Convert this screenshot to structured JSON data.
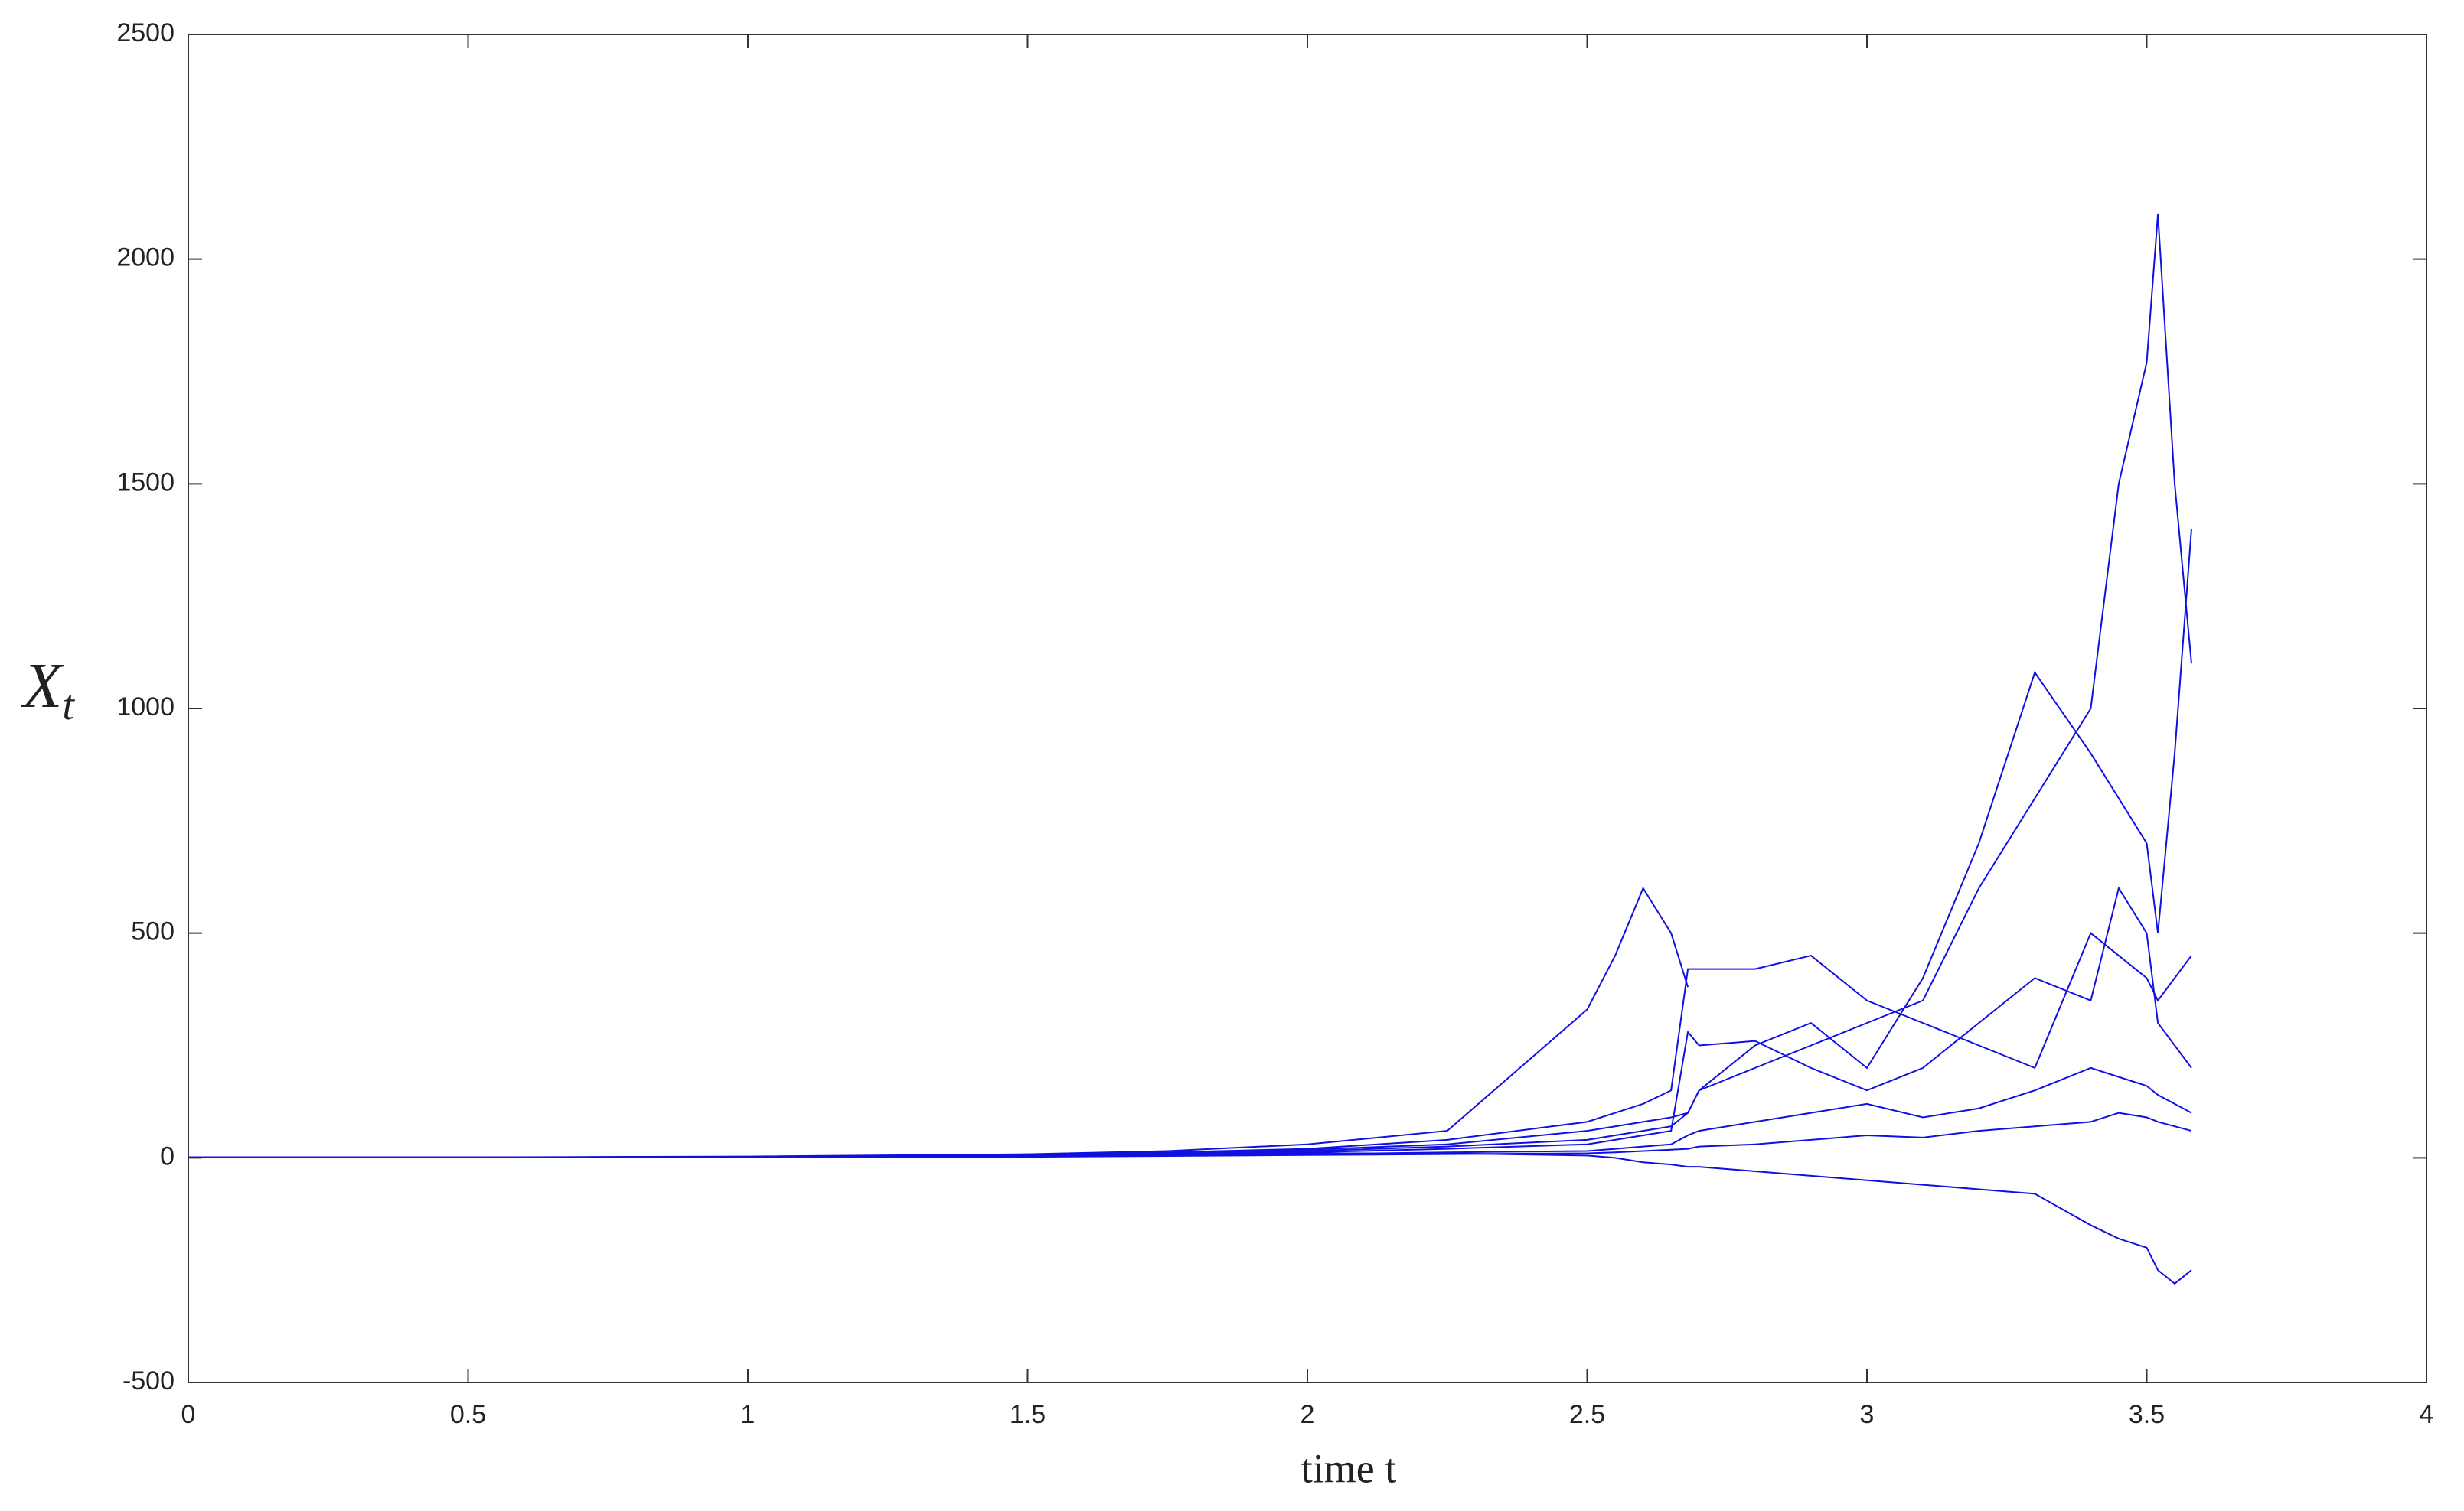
{
  "chart_data": {
    "type": "line",
    "x_label": "time t",
    "y_label": "Xt",
    "x": [
      0,
      0.5,
      1,
      1.5,
      1.75,
      2,
      2.25,
      2.5,
      2.55,
      2.6,
      2.65,
      2.68,
      2.7,
      2.8,
      2.9,
      3.0,
      3.1,
      3.2,
      3.3,
      3.4,
      3.45,
      3.5,
      3.52,
      3.55,
      3.58
    ],
    "series": [
      {
        "color": "#1010e0",
        "values": [
          1,
          1,
          2,
          5,
          10,
          18,
          30,
          60,
          70,
          80,
          90,
          100,
          150,
          200,
          250,
          300,
          350,
          600,
          800,
          1000,
          1500,
          1770,
          2100,
          1500,
          1100
        ]
      },
      {
        "color": "#1010e0",
        "values": [
          1,
          1,
          3,
          8,
          15,
          30,
          60,
          330,
          450,
          600,
          500,
          380,
          null,
          null,
          null,
          null,
          null,
          null,
          null,
          null,
          null,
          null,
          null,
          null,
          null
        ]
      },
      {
        "color": "#1010e0",
        "values": [
          1,
          1,
          1,
          3,
          6,
          10,
          10,
          5,
          0,
          -10,
          -15,
          -20,
          -20,
          -30,
          -40,
          -50,
          -60,
          -70,
          -80,
          -150,
          -180,
          -200,
          -250,
          -280,
          -250
        ]
      },
      {
        "color": "#1010e0",
        "values": [
          1,
          1,
          2,
          5,
          10,
          15,
          25,
          40,
          50,
          60,
          70,
          100,
          150,
          250,
          300,
          200,
          400,
          700,
          1080,
          900,
          800,
          700,
          500,
          900,
          1400
        ]
      },
      {
        "color": "#1010e0",
        "values": [
          1,
          1,
          2,
          6,
          12,
          20,
          40,
          80,
          100,
          120,
          150,
          420,
          420,
          420,
          450,
          350,
          300,
          250,
          200,
          500,
          450,
          400,
          350,
          400,
          450
        ]
      },
      {
        "color": "#1010e0",
        "values": [
          1,
          1,
          2,
          4,
          8,
          12,
          20,
          30,
          40,
          50,
          60,
          280,
          250,
          260,
          200,
          150,
          200,
          300,
          400,
          350,
          600,
          500,
          300,
          250,
          200
        ]
      },
      {
        "color": "#1010e0",
        "values": [
          1,
          1,
          1,
          3,
          5,
          8,
          12,
          15,
          20,
          25,
          30,
          50,
          60,
          80,
          100,
          120,
          90,
          110,
          150,
          200,
          180,
          160,
          140,
          120,
          100
        ]
      },
      {
        "color": "#1010e0",
        "values": [
          1,
          1,
          1,
          2,
          4,
          6,
          8,
          10,
          12,
          15,
          18,
          20,
          25,
          30,
          40,
          50,
          45,
          60,
          70,
          80,
          100,
          90,
          80,
          70,
          60
        ]
      }
    ],
    "xlim": [
      0,
      4
    ],
    "xticks": [
      0,
      0.5,
      1,
      1.5,
      2,
      2.5,
      3,
      3.5,
      4
    ],
    "ylim": [
      -500,
      2500
    ],
    "yticks": [
      -500,
      0,
      500,
      1000,
      1500,
      2000,
      2500
    ],
    "grid": false
  }
}
